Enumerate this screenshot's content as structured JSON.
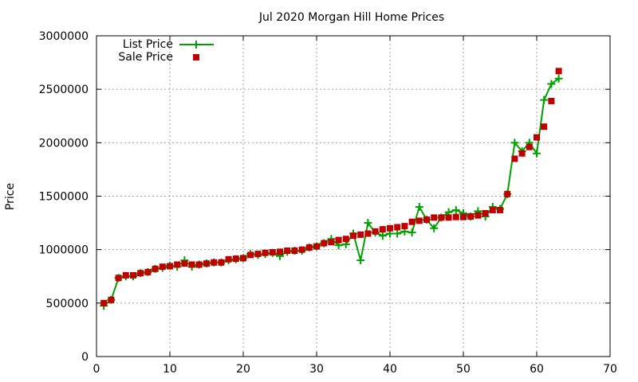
{
  "chart_data": {
    "type": "line",
    "title": "Jul 2020 Morgan Hill Home Prices",
    "xlabel": "",
    "ylabel": "Price",
    "xlim": [
      0,
      70
    ],
    "ylim": [
      0,
      3000000
    ],
    "xticks": [
      0,
      10,
      20,
      30,
      40,
      50,
      60,
      70
    ],
    "yticks": [
      0,
      500000,
      1000000,
      1500000,
      2000000,
      2500000,
      3000000
    ],
    "grid": true,
    "legend_position": "top-left",
    "series": [
      {
        "name": "List Price",
        "style": "line-plus",
        "color": "#00a000",
        "x": [
          1,
          2,
          3,
          4,
          5,
          6,
          7,
          8,
          9,
          10,
          11,
          12,
          13,
          14,
          15,
          16,
          17,
          18,
          19,
          20,
          21,
          22,
          23,
          24,
          25,
          26,
          27,
          28,
          29,
          30,
          31,
          32,
          33,
          34,
          35,
          36,
          37,
          38,
          39,
          40,
          41,
          42,
          43,
          44,
          45,
          46,
          47,
          48,
          49,
          50,
          51,
          52,
          53,
          54,
          55,
          56,
          57,
          58,
          59,
          60,
          61,
          62,
          63
        ],
        "values": [
          475000,
          530000,
          735000,
          750000,
          750000,
          780000,
          790000,
          820000,
          830000,
          850000,
          840000,
          900000,
          840000,
          860000,
          870000,
          880000,
          880000,
          900000,
          910000,
          920000,
          960000,
          950000,
          960000,
          970000,
          940000,
          980000,
          990000,
          990000,
          1020000,
          1030000,
          1060000,
          1100000,
          1040000,
          1050000,
          1150000,
          900000,
          1250000,
          1160000,
          1130000,
          1150000,
          1150000,
          1170000,
          1160000,
          1400000,
          1280000,
          1200000,
          1300000,
          1350000,
          1370000,
          1340000,
          1310000,
          1360000,
          1310000,
          1400000,
          1380000,
          1520000,
          2000000,
          1920000,
          2000000,
          1900000,
          2400000,
          2550000,
          2600000
        ]
      },
      {
        "name": "Sale Price",
        "style": "square",
        "color": "#c00000",
        "x": [
          1,
          2,
          3,
          4,
          5,
          6,
          7,
          8,
          9,
          10,
          11,
          12,
          13,
          14,
          15,
          16,
          17,
          18,
          19,
          20,
          21,
          22,
          23,
          24,
          25,
          26,
          27,
          28,
          29,
          30,
          31,
          32,
          33,
          34,
          35,
          36,
          37,
          38,
          39,
          40,
          41,
          42,
          43,
          44,
          45,
          46,
          47,
          48,
          49,
          50,
          51,
          52,
          53,
          54,
          55,
          56,
          57,
          58,
          59,
          60,
          61,
          62,
          63
        ],
        "values": [
          500000,
          530000,
          735000,
          760000,
          760000,
          780000,
          790000,
          820000,
          840000,
          845000,
          860000,
          870000,
          860000,
          860000,
          870000,
          880000,
          880000,
          910000,
          915000,
          920000,
          950000,
          960000,
          970000,
          975000,
          980000,
          990000,
          990000,
          1000000,
          1020000,
          1030000,
          1060000,
          1070000,
          1090000,
          1100000,
          1130000,
          1140000,
          1150000,
          1170000,
          1190000,
          1200000,
          1210000,
          1220000,
          1260000,
          1270000,
          1280000,
          1300000,
          1300000,
          1300000,
          1305000,
          1305000,
          1310000,
          1320000,
          1340000,
          1370000,
          1370000,
          1520000,
          1850000,
          1900000,
          1960000,
          2050000,
          2150000,
          2390000,
          2670000
        ]
      }
    ]
  }
}
